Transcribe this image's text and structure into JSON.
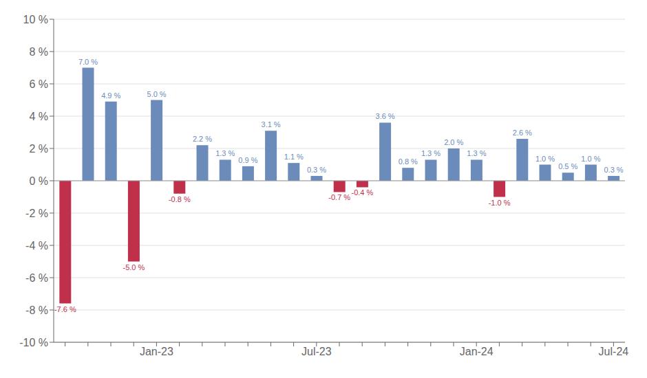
{
  "chart_data": {
    "type": "bar",
    "categories": [
      null,
      null,
      null,
      null,
      "Jan-23",
      null,
      null,
      null,
      null,
      null,
      null,
      "Jul-23",
      null,
      null,
      null,
      null,
      null,
      null,
      "Jan-24",
      null,
      null,
      null,
      null,
      null,
      "Jul-24"
    ],
    "values": [
      -7.6,
      7.0,
      4.9,
      -5.0,
      5.0,
      -0.8,
      2.2,
      1.3,
      0.9,
      3.1,
      1.1,
      0.3,
      -0.7,
      -0.4,
      3.6,
      0.8,
      1.3,
      2.0,
      1.3,
      -1.0,
      2.6,
      1.0,
      0.5,
      1.0,
      0.3
    ],
    "value_labels": [
      "-7.6 %",
      "7.0 %",
      "4.9 %",
      "-5.0 %",
      "5.0 %",
      "-0.8 %",
      "2.2 %",
      "1.3 %",
      "0.9 %",
      "3.1 %",
      "1.1 %",
      "0.3 %",
      "-0.7 %",
      "-0.4 %",
      "3.6 %",
      "0.8 %",
      "1.3 %",
      "2.0 %",
      "1.3 %",
      "-1.0 %",
      "2.6 %",
      "1.0 %",
      "0.5 %",
      "1.0 %",
      "0.3 %"
    ],
    "colors": [
      "#c0304a",
      "#6b8cba",
      "#6b8cba",
      "#c0304a",
      "#6b8cba",
      "#c0304a",
      "#6b8cba",
      "#6b8cba",
      "#6b8cba",
      "#6b8cba",
      "#6b8cba",
      "#6b8cba",
      "#c0304a",
      "#c0304a",
      "#6b8cba",
      "#6b8cba",
      "#6b8cba",
      "#6b8cba",
      "#6b8cba",
      "#c0304a",
      "#6b8cba",
      "#6b8cba",
      "#6b8cba",
      "#6b8cba",
      "#6b8cba"
    ],
    "ylim": [
      -10,
      10
    ],
    "yticks": [
      {
        "value": -10,
        "label": "-10 %"
      },
      {
        "value": -8,
        "label": "-8 %"
      },
      {
        "value": -6,
        "label": "-6 %"
      },
      {
        "value": -4,
        "label": "-4 %"
      },
      {
        "value": -2,
        "label": "-2 %"
      },
      {
        "value": 0,
        "label": "0 %"
      },
      {
        "value": 2,
        "label": "2 %"
      },
      {
        "value": 4,
        "label": "4 %"
      },
      {
        "value": 6,
        "label": "6 %"
      },
      {
        "value": 8,
        "label": "8 %"
      },
      {
        "value": 10,
        "label": "10 %"
      }
    ],
    "grid": true,
    "data_labels": true
  }
}
